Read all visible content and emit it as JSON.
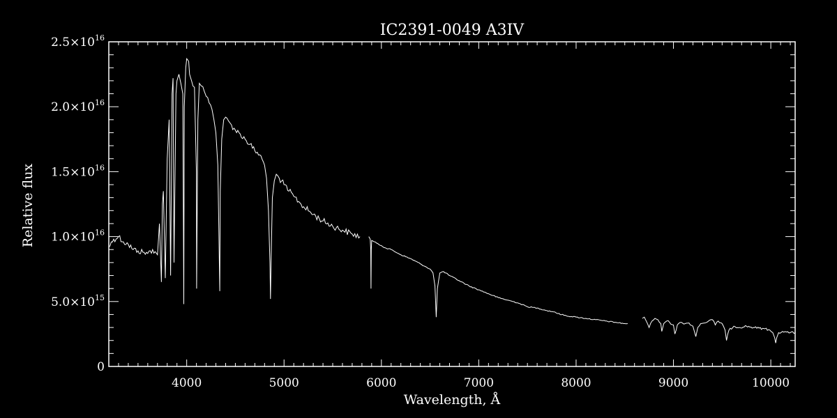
{
  "chart_data": {
    "type": "line",
    "title": "IC2391-0049   A3IV",
    "xlabel": "Wavelength, Å",
    "ylabel": "Relative flux",
    "xlim": [
      3200,
      10250
    ],
    "ylim": [
      0,
      2.5e+16
    ],
    "x_ticks": [
      {
        "value": 4000,
        "label": "4000"
      },
      {
        "value": 5000,
        "label": "5000"
      },
      {
        "value": 6000,
        "label": "6000"
      },
      {
        "value": 7000,
        "label": "7000"
      },
      {
        "value": 8000,
        "label": "8000"
      },
      {
        "value": 9000,
        "label": "9000"
      },
      {
        "value": 10000,
        "label": "10000"
      }
    ],
    "y_ticks": [
      {
        "value": 0,
        "mantissa": "0",
        "exponent": ""
      },
      {
        "value": 5000000000000000.0,
        "mantissa": "5.0×10",
        "exponent": "15"
      },
      {
        "value": 1e+16,
        "mantissa": "1.0×10",
        "exponent": "16"
      },
      {
        "value": 1.5e+16,
        "mantissa": "1.5×10",
        "exponent": "16"
      },
      {
        "value": 2e+16,
        "mantissa": "2.0×10",
        "exponent": "16"
      },
      {
        "value": 2.5e+16,
        "mantissa": "2.5×10",
        "exponent": "16"
      }
    ],
    "grid": false,
    "colors": {
      "background": "#000000",
      "foreground": "#ffffff"
    },
    "series": [
      {
        "segments": [
          {
            "x": [
              3200,
              3250,
              3300,
              3350,
              3400,
              3450,
              3500,
              3550,
              3600,
              3650,
              3700,
              3720,
              3740,
              3750,
              3760,
              3780,
              3800,
              3820,
              3835,
              3850,
              3860,
              3870,
              3890,
              3900,
              3920,
              3940,
              3960,
              3970,
              3975,
              3990,
              4000,
              4020,
              4030,
              4050,
              4080,
              4100,
              4102,
              4115,
              4130,
              4150,
              4180,
              4200,
              4230,
              4260,
              4280,
              4300,
              4320,
              4340,
              4345,
              4360,
              4380,
              4400,
              4430,
              4460,
              4500,
              4550,
              4600,
              4650,
              4700,
              4750,
              4800,
              4820,
              4840,
              4855,
              4861,
              4868,
              4880,
              4900,
              4920,
              4950,
              5000,
              5050,
              5100,
              5150,
              5200,
              5300,
              5400,
              5500,
              5600,
              5700,
              5780
            ],
            "y": [
              9200000000000000.0,
              9800000000000000.0,
              1e+16,
              9600000000000000.0,
              9400000000000000.0,
              9000000000000000.0,
              8900000000000000.0,
              8800000000000000.0,
              8700000000000000.0,
              9000000000000000.0,
              8600000000000000.0,
              1.1e+16,
              6500000000000000.0,
              1.25e+16,
              1.35e+16,
              6800000000000000.0,
              1.6e+16,
              1.9e+16,
              7000000000000000.0,
              2.1e+16,
              2.22e+16,
              8000000000000000.0,
              2.1e+16,
              2.2e+16,
              2.25e+16,
              2.18e+16,
              2.1e+16,
              4800000000000000.0,
              2e+16,
              2.3e+16,
              2.37e+16,
              2.35e+16,
              2.25e+16,
              2.2e+16,
              2.15e+16,
              1.5e+16,
              6000000000000000.0,
              1.9e+16,
              2.18e+16,
              2.16e+16,
              2.12e+16,
              2.08e+16,
              2.03e+16,
              1.98e+16,
              1.9e+16,
              1.8e+16,
              1.55e+16,
              5800000000000000.0,
              1.35e+16,
              1.75e+16,
              1.9e+16,
              1.92e+16,
              1.89e+16,
              1.86e+16,
              1.82e+16,
              1.79e+16,
              1.75e+16,
              1.71e+16,
              1.66e+16,
              1.63e+16,
              1.55e+16,
              1.45e+16,
              1.2e+16,
              8000000000000000.0,
              5200000000000000.0,
              8500000000000000.0,
              1.3e+16,
              1.43e+16,
              1.48e+16,
              1.45e+16,
              1.4e+16,
              1.35e+16,
              1.31e+16,
              1.27e+16,
              1.23e+16,
              1.17e+16,
              1.12e+16,
              1.08e+16,
              1.05e+16,
              1.02e+16,
              1e+16
            ]
          },
          {
            "x": [
              5870,
              5885,
              5890,
              5893,
              5896,
              5900,
              5950,
              6000,
              6050,
              6100,
              6200,
              6300,
              6400,
              6450,
              6500,
              6530,
              6550,
              6563,
              6575,
              6600,
              6640,
              6700,
              6800,
              6900,
              7000,
              7100,
              7200,
              7300,
              7400,
              7500,
              7600,
              7700,
              7780,
              7800,
              7900,
              8000,
              8100,
              8200,
              8300,
              8400,
              8500,
              8530
            ],
            "y": [
              1e+16,
              9800000000000000.0,
              9000000000000000.0,
              6000000000000000.0,
              9000000000000000.0,
              9700000000000000.0,
              9500000000000000.0,
              9300000000000000.0,
              9100000000000000.0,
              9000000000000000.0,
              8600000000000000.0,
              8300000000000000.0,
              7900000000000000.0,
              7700000000000000.0,
              7500000000000000.0,
              7200000000000000.0,
              6200000000000000.0,
              3800000000000000.0,
              6000000000000000.0,
              7200000000000000.0,
              7300000000000000.0,
              7000000000000000.0,
              6600000000000000.0,
              6200000000000000.0,
              5900000000000000.0,
              5600000000000000.0,
              5300000000000000.0,
              5100000000000000.0,
              4900000000000000.0,
              4600000000000000.0,
              4500000000000000.0,
              4300000000000000.0,
              4200000000000000.0,
              4100000000000000.0,
              3900000000000000.0,
              3800000000000000.0,
              3700000000000000.0,
              3600000000000000.0,
              3500000000000000.0,
              3400000000000000.0,
              3300000000000000.0,
              3300000000000000.0
            ]
          },
          {
            "x": [
              8680,
              8700,
              8720,
              8750,
              8780,
              8810,
              8840,
              8870,
              8880,
              8900,
              8930,
              8960,
              9000,
              9015,
              9040,
              9080,
              9120,
              9160,
              9200,
              9230,
              9250,
              9280,
              9320,
              9360,
              9400,
              9430,
              9460,
              9500,
              9530,
              9545,
              9570,
              9620,
              9680,
              9750,
              9820,
              9880,
              9940,
              9990,
              10020,
              10040,
              10050,
              10060,
              10080,
              10120,
              10160,
              10200,
              10250
            ],
            "y": [
              3700000000000000.0,
              3800000000000000.0,
              3500000000000000.0,
              3000000000000000.0,
              3500000000000000.0,
              3700000000000000.0,
              3600000000000000.0,
              3300000000000000.0,
              2700000000000000.0,
              3300000000000000.0,
              3500000000000000.0,
              3400000000000000.0,
              3200000000000000.0,
              2500000000000000.0,
              3200000000000000.0,
              3400000000000000.0,
              3300000000000000.0,
              3350000000000000.0,
              3100000000000000.0,
              2300000000000000.0,
              3000000000000000.0,
              3300000000000000.0,
              3350000000000000.0,
              3500000000000000.0,
              3600000000000000.0,
              3200000000000000.0,
              3500000000000000.0,
              3300000000000000.0,
              2800000000000000.0,
              2000000000000000.0,
              2800000000000000.0,
              3100000000000000.0,
              3000000000000000.0,
              3100000000000000.0,
              3000000000000000.0,
              2950000000000000.0,
              2900000000000000.0,
              2800000000000000.0,
              2600000000000000.0,
              2200000000000000.0,
              1800000000000000.0,
              2200000000000000.0,
              2600000000000000.0,
              2700000000000000.0,
              2650000000000000.0,
              2600000000000000.0,
              2600000000000000.0
            ]
          }
        ]
      }
    ]
  }
}
